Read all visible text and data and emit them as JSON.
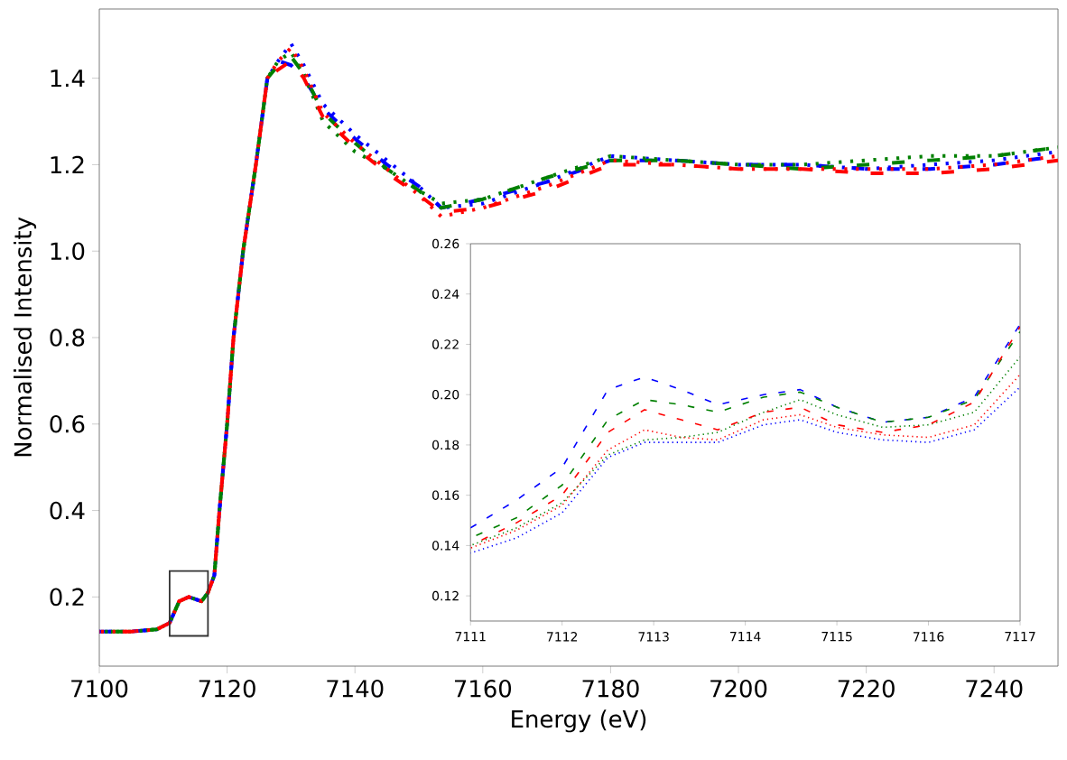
{
  "chart_data": [
    {
      "type": "line",
      "xlabel": "Energy (eV)",
      "ylabel": "Normalised Intensity",
      "xlim": [
        7100,
        7250
      ],
      "ylim": [
        0.04,
        1.56
      ],
      "xticks": [
        7100,
        7120,
        7140,
        7160,
        7180,
        7200,
        7220,
        7240
      ],
      "yticks": [
        0.2,
        0.4,
        0.6,
        0.8,
        {
          "value": 1.0,
          "label": "1.0"
        },
        1.2,
        1.4
      ],
      "x": [
        7100,
        7105,
        7109,
        7111,
        7112.5,
        7114,
        7116,
        7117,
        7118,
        7118.8,
        7120,
        7121,
        7122.5,
        7124.5,
        7126.3,
        7128,
        7130,
        7132,
        7135,
        7140,
        7145,
        7150,
        7153.5,
        7160,
        7170,
        7180,
        7190,
        7200,
        7210,
        7220,
        7230,
        7240,
        7250
      ],
      "series": [
        {
          "color": "#0000ff",
          "line_style": "dashed",
          "values": [
            0.12,
            0.12,
            0.125,
            0.14,
            0.19,
            0.2,
            0.19,
            0.21,
            0.25,
            0.4,
            0.6,
            0.8,
            1.0,
            1.2,
            1.4,
            1.44,
            1.43,
            1.4,
            1.33,
            1.26,
            1.2,
            1.15,
            1.1,
            1.12,
            1.16,
            1.21,
            1.21,
            1.2,
            1.2,
            1.19,
            1.19,
            1.2,
            1.22
          ]
        },
        {
          "color": "#0000ff",
          "line_style": "dotted",
          "values": [
            0.12,
            0.12,
            0.125,
            0.14,
            0.19,
            0.2,
            0.19,
            0.21,
            0.25,
            0.4,
            0.6,
            0.8,
            1.0,
            1.2,
            1.4,
            1.44,
            1.48,
            1.43,
            1.34,
            1.27,
            1.21,
            1.15,
            1.1,
            1.11,
            1.16,
            1.22,
            1.21,
            1.2,
            1.2,
            1.19,
            1.2,
            1.21,
            1.23
          ]
        },
        {
          "color": "#008000",
          "line_style": "dashed",
          "values": [
            0.12,
            0.12,
            0.125,
            0.14,
            0.19,
            0.2,
            0.19,
            0.21,
            0.25,
            0.4,
            0.6,
            0.8,
            1.0,
            1.2,
            1.4,
            1.43,
            1.45,
            1.41,
            1.32,
            1.25,
            1.19,
            1.14,
            1.1,
            1.12,
            1.17,
            1.21,
            1.21,
            1.2,
            1.19,
            1.2,
            1.21,
            1.22,
            1.24
          ]
        },
        {
          "color": "#008000",
          "line_style": "dotted",
          "values": [
            0.12,
            0.12,
            0.125,
            0.14,
            0.19,
            0.2,
            0.19,
            0.21,
            0.25,
            0.4,
            0.6,
            0.8,
            1.0,
            1.2,
            1.4,
            1.44,
            1.46,
            1.41,
            1.3,
            1.23,
            1.19,
            1.14,
            1.11,
            1.12,
            1.17,
            1.22,
            1.21,
            1.2,
            1.2,
            1.21,
            1.22,
            1.22,
            1.24
          ]
        },
        {
          "color": "#ff0000",
          "line_style": "dashed",
          "values": [
            0.12,
            0.12,
            0.125,
            0.14,
            0.19,
            0.2,
            0.19,
            0.21,
            0.25,
            0.4,
            0.6,
            0.8,
            1.0,
            1.2,
            1.4,
            1.42,
            1.44,
            1.4,
            1.31,
            1.24,
            1.18,
            1.13,
            1.09,
            1.1,
            1.14,
            1.2,
            1.2,
            1.19,
            1.19,
            1.18,
            1.18,
            1.19,
            1.21
          ]
        },
        {
          "color": "#ff0000",
          "line_style": "dotted",
          "values": [
            0.12,
            0.12,
            0.125,
            0.14,
            0.19,
            0.2,
            0.19,
            0.21,
            0.25,
            0.4,
            0.6,
            0.8,
            1.0,
            1.2,
            1.4,
            1.44,
            1.47,
            1.42,
            1.32,
            1.25,
            1.19,
            1.13,
            1.08,
            1.1,
            1.15,
            1.21,
            1.2,
            1.19,
            1.19,
            1.19,
            1.19,
            1.2,
            1.22
          ]
        }
      ]
    },
    {
      "type": "line",
      "xlim": [
        7111,
        7117
      ],
      "ylim": [
        0.11,
        0.26
      ],
      "xticks": [
        7111,
        7112,
        7113,
        7114,
        7115,
        7116,
        7117
      ],
      "yticks": [
        0.12,
        0.14,
        0.16,
        0.18,
        {
          "value": 0.2,
          "label": "0.20"
        },
        0.22,
        0.24,
        0.26
      ],
      "x": [
        7111,
        7111.5,
        7112,
        7112.5,
        7112.9,
        7113.3,
        7113.7,
        7114.2,
        7114.6,
        7115,
        7115.5,
        7116,
        7116.5,
        7117
      ],
      "series": [
        {
          "color": "#0000ff",
          "line_style": "dashed",
          "values": [
            0.147,
            0.158,
            0.171,
            0.202,
            0.207,
            0.202,
            0.196,
            0.2,
            0.202,
            0.195,
            0.189,
            0.191,
            0.199,
            0.228
          ]
        },
        {
          "color": "#0000ff",
          "line_style": "dotted",
          "values": [
            0.137,
            0.143,
            0.153,
            0.175,
            0.181,
            0.181,
            0.181,
            0.188,
            0.19,
            0.185,
            0.182,
            0.181,
            0.186,
            0.203
          ]
        },
        {
          "color": "#008000",
          "line_style": "dashed",
          "values": [
            0.143,
            0.151,
            0.164,
            0.19,
            0.198,
            0.196,
            0.193,
            0.199,
            0.201,
            0.195,
            0.189,
            0.191,
            0.198,
            0.225
          ]
        },
        {
          "color": "#008000",
          "line_style": "dotted",
          "values": [
            0.14,
            0.147,
            0.157,
            0.176,
            0.182,
            0.183,
            0.185,
            0.193,
            0.198,
            0.192,
            0.187,
            0.188,
            0.193,
            0.215
          ]
        },
        {
          "color": "#ff0000",
          "line_style": "dashed",
          "values": [
            0.14,
            0.149,
            0.16,
            0.185,
            0.194,
            0.19,
            0.186,
            0.193,
            0.195,
            0.188,
            0.185,
            0.188,
            0.197,
            0.227
          ]
        },
        {
          "color": "#ff0000",
          "line_style": "dotted",
          "values": [
            0.139,
            0.146,
            0.156,
            0.178,
            0.186,
            0.183,
            0.182,
            0.19,
            0.192,
            0.187,
            0.184,
            0.183,
            0.188,
            0.208
          ]
        }
      ]
    }
  ]
}
